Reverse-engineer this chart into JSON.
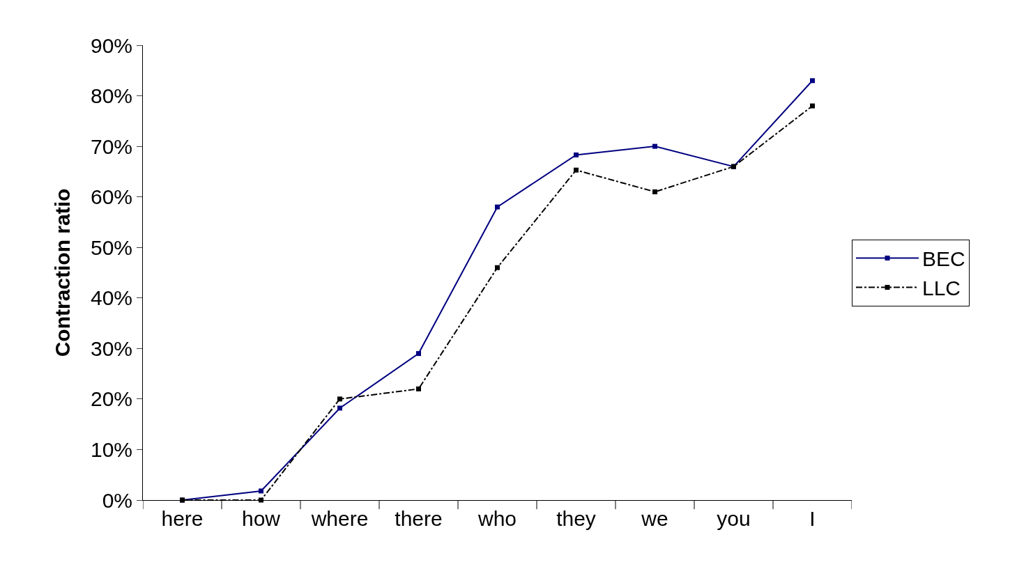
{
  "chart_data": {
    "type": "line",
    "ylabel": "Contraction ratio",
    "categories": [
      "here",
      "how",
      "where",
      "there",
      "who",
      "they",
      "we",
      "you",
      "I"
    ],
    "series": [
      {
        "name": "BEC",
        "color": "#000080",
        "line_style": "solid",
        "marker": "square",
        "values": [
          0,
          1.8,
          18.2,
          29,
          58,
          68.3,
          70,
          66,
          83
        ]
      },
      {
        "name": "LLC",
        "color": "#000000",
        "line_style": "dashdot",
        "marker": "square",
        "values": [
          0,
          0,
          20,
          22,
          46,
          65.3,
          61,
          66,
          78
        ]
      }
    ],
    "ylim": [
      0,
      90
    ],
    "yticks": [
      {
        "value": 0,
        "label": "0%"
      },
      {
        "value": 10,
        "label": "10%"
      },
      {
        "value": 20,
        "label": "20%"
      },
      {
        "value": 30,
        "label": "30%"
      },
      {
        "value": 40,
        "label": "40%"
      },
      {
        "value": 50,
        "label": "50%"
      },
      {
        "value": 60,
        "label": "60%"
      },
      {
        "value": 70,
        "label": "70%"
      },
      {
        "value": 80,
        "label": "80%"
      },
      {
        "value": 90,
        "label": "90%"
      }
    ],
    "legend": "right"
  }
}
